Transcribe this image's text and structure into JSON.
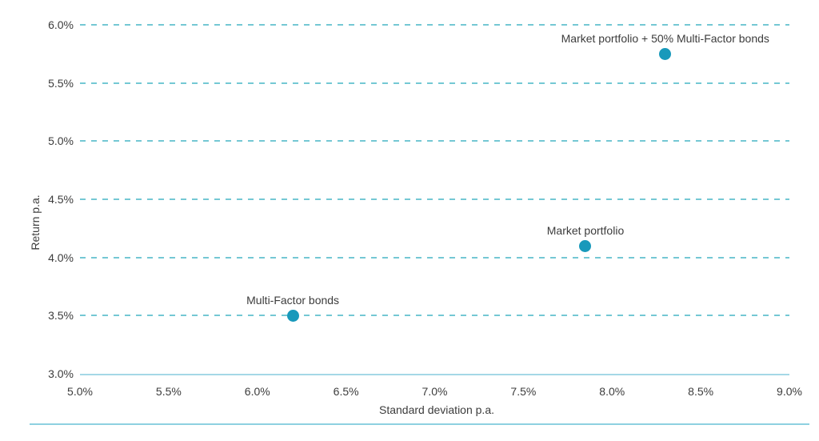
{
  "chart_data": {
    "type": "scatter",
    "title": "",
    "xlabel": "Standard deviation p.a.",
    "ylabel": "Return p.a.",
    "xlim": [
      5.0,
      9.0
    ],
    "ylim": [
      3.0,
      6.0
    ],
    "x_ticks": [
      "5.0%",
      "5.5%",
      "6.0%",
      "6.5%",
      "7.0%",
      "7.5%",
      "8.0%",
      "8.5%",
      "9.0%"
    ],
    "x_tick_values": [
      5.0,
      5.5,
      6.0,
      6.5,
      7.0,
      7.5,
      8.0,
      8.5,
      9.0
    ],
    "y_ticks": [
      "3.0%",
      "3.5%",
      "4.0%",
      "4.5%",
      "5.0%",
      "5.5%",
      "6.0%"
    ],
    "y_tick_values": [
      3.0,
      3.5,
      4.0,
      4.5,
      5.0,
      5.5,
      6.0
    ],
    "grid": "horizontal-dashed",
    "legend": "none",
    "points": [
      {
        "label": "Multi-Factor bonds",
        "x": 6.2,
        "y": 3.5
      },
      {
        "label": "Market portfolio",
        "x": 7.85,
        "y": 4.1
      },
      {
        "label": "Market portfolio + 50% Multi-Factor bonds",
        "x": 8.3,
        "y": 5.75
      }
    ],
    "colors": {
      "point": "#1899bb",
      "gridline": "#74c8d4",
      "axis_line": "#a5d8e6",
      "bottom_rule": "#8ed1e0",
      "text": "#3c3c3c"
    }
  }
}
